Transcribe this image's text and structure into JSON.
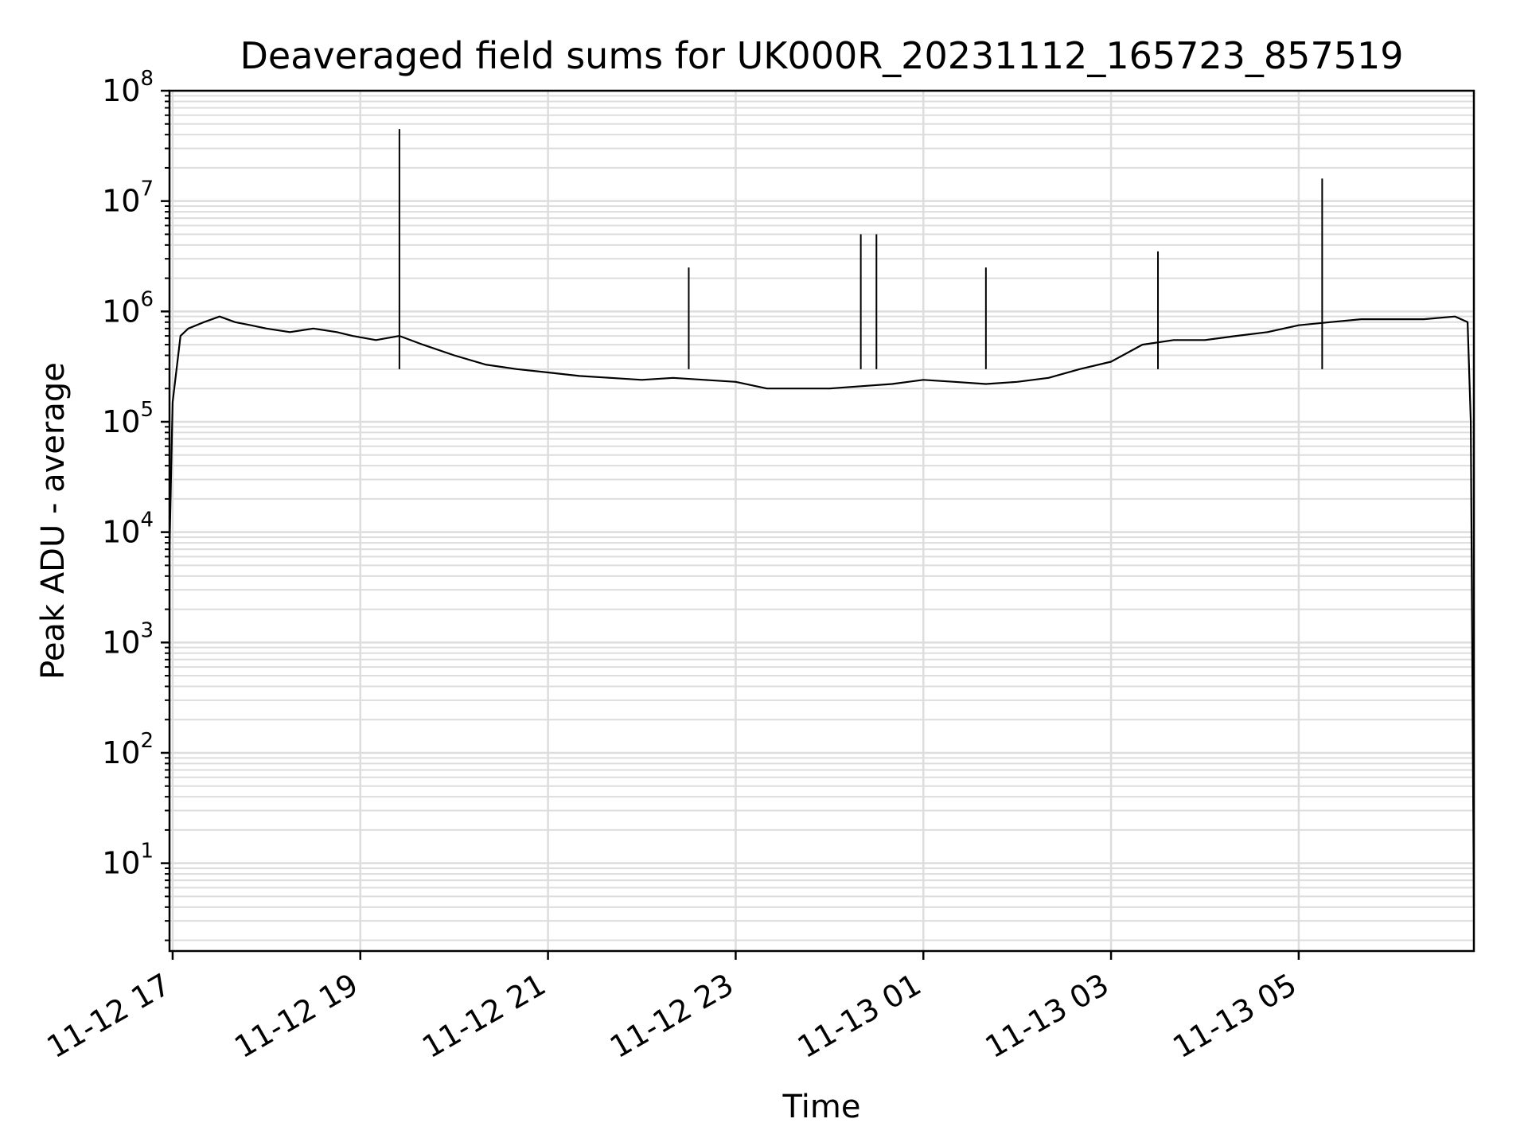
{
  "chart_data": {
    "type": "line",
    "title": "Deaveraged field sums for UK000R_20231112_165723_857519",
    "xlabel": "Time",
    "ylabel": "Peak ADU - average",
    "yscale": "log",
    "ylim": [
      1.6,
      100000000
    ],
    "xlim": [
      "2023-11-12 16:58",
      "2023-11-13 06:52"
    ],
    "grid": true,
    "line_color": "#000000",
    "grid_color": "#dddddd",
    "x_ticks": [
      {
        "label": "11-12 17",
        "t": "2023-11-12 17:00"
      },
      {
        "label": "11-12 19",
        "t": "2023-11-12 19:00"
      },
      {
        "label": "11-12 21",
        "t": "2023-11-12 21:00"
      },
      {
        "label": "11-12 23",
        "t": "2023-11-12 23:00"
      },
      {
        "label": "11-13 01",
        "t": "2023-11-13 01:00"
      },
      {
        "label": "11-13 03",
        "t": "2023-11-13 03:00"
      },
      {
        "label": "11-13 05",
        "t": "2023-11-13 05:00"
      }
    ],
    "y_ticks": [
      {
        "base": "10",
        "exp": "1",
        "value": 10
      },
      {
        "base": "10",
        "exp": "2",
        "value": 100
      },
      {
        "base": "10",
        "exp": "3",
        "value": 1000
      },
      {
        "base": "10",
        "exp": "4",
        "value": 10000
      },
      {
        "base": "10",
        "exp": "5",
        "value": 100000
      },
      {
        "base": "10",
        "exp": "6",
        "value": 1000000
      },
      {
        "base": "10",
        "exp": "7",
        "value": 10000000
      },
      {
        "base": "10",
        "exp": "8",
        "value": 100000000
      }
    ],
    "series": [
      {
        "x": [
          "2023-11-12 16:58",
          "2023-11-12 17:00",
          "2023-11-12 17:05",
          "2023-11-12 17:10",
          "2023-11-12 17:20",
          "2023-11-12 17:30",
          "2023-11-12 17:40",
          "2023-11-12 17:50",
          "2023-11-12 18:00",
          "2023-11-12 18:15",
          "2023-11-12 18:30",
          "2023-11-12 18:45",
          "2023-11-12 18:55",
          "2023-11-12 19:10",
          "2023-11-12 19:25",
          "2023-11-12 19:40",
          "2023-11-12 20:00",
          "2023-11-12 20:20",
          "2023-11-12 20:40",
          "2023-11-12 21:00",
          "2023-11-12 21:20",
          "2023-11-12 21:40",
          "2023-11-12 22:00",
          "2023-11-12 22:20",
          "2023-11-12 22:40",
          "2023-11-12 23:00",
          "2023-11-12 23:20",
          "2023-11-12 23:40",
          "2023-11-13 00:00",
          "2023-11-13 00:20",
          "2023-11-13 00:40",
          "2023-11-13 01:00",
          "2023-11-13 01:20",
          "2023-11-13 01:40",
          "2023-11-13 02:00",
          "2023-11-13 02:20",
          "2023-11-13 02:40",
          "2023-11-13 03:00",
          "2023-11-13 03:20",
          "2023-11-13 03:40",
          "2023-11-13 04:00",
          "2023-11-13 04:20",
          "2023-11-13 04:40",
          "2023-11-13 05:00",
          "2023-11-13 05:20",
          "2023-11-13 05:40",
          "2023-11-13 06:00",
          "2023-11-13 06:20",
          "2023-11-13 06:40",
          "2023-11-13 06:48",
          "2023-11-13 06:50",
          "2023-11-13 06:52"
        ],
        "y": [
          7000,
          150000,
          600000,
          700000,
          800000,
          900000,
          800000,
          750000,
          700000,
          650000,
          700000,
          650000,
          600000,
          550000,
          600000,
          500000,
          400000,
          330000,
          300000,
          280000,
          260000,
          250000,
          240000,
          250000,
          240000,
          230000,
          200000,
          200000,
          200000,
          210000,
          220000,
          240000,
          230000,
          220000,
          230000,
          250000,
          300000,
          350000,
          500000,
          550000,
          550000,
          600000,
          650000,
          750000,
          800000,
          850000,
          850000,
          850000,
          900000,
          800000,
          100000,
          4
        ]
      }
    ],
    "annotations": [
      {
        "label": "spike",
        "t": "2023-11-12 19:25",
        "value": 45000000
      },
      {
        "label": "spike",
        "t": "2023-11-13 00:20",
        "value": 5000000
      },
      {
        "label": "spike",
        "t": "2023-11-13 00:30",
        "value": 5000000
      },
      {
        "label": "spike",
        "t": "2023-11-13 05:15",
        "value": 16000000
      },
      {
        "label": "spike",
        "t": "2023-11-12 22:30",
        "value": 2500000
      },
      {
        "label": "spike",
        "t": "2023-11-13 01:40",
        "value": 2500000
      },
      {
        "label": "spike",
        "t": "2023-11-13 03:30",
        "value": 3500000
      }
    ]
  }
}
